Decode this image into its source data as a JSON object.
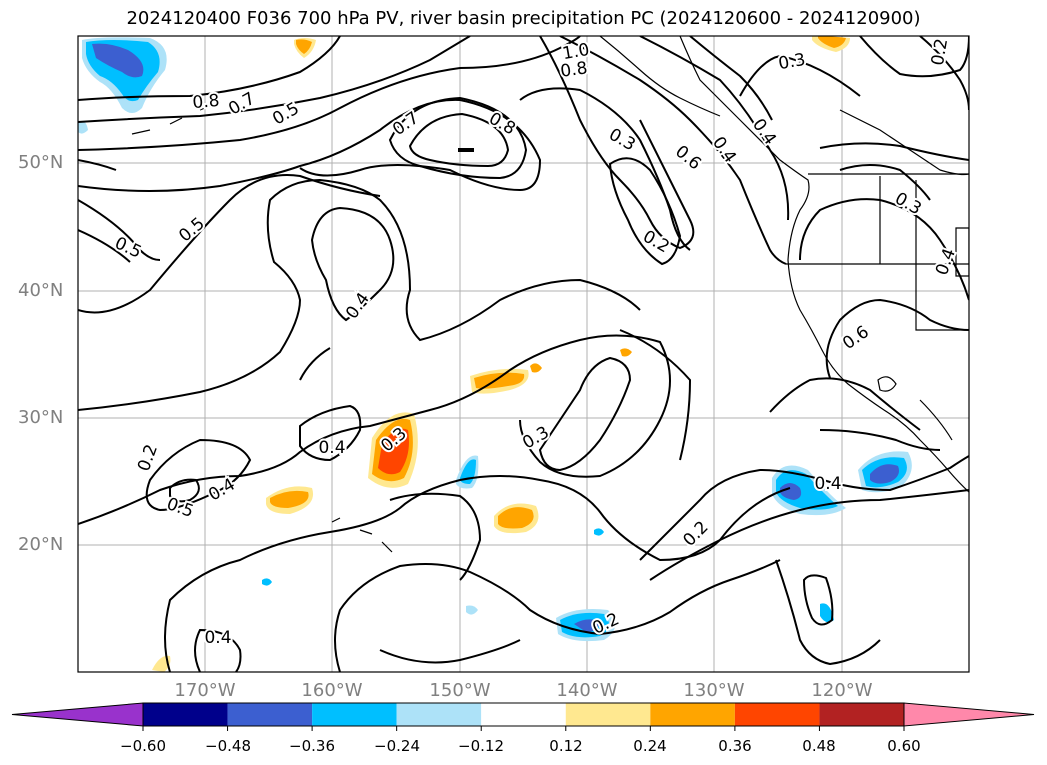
{
  "title": "2024120400 F036 700 hPa PV, river basin precipitation PC (2024120600 - 2024120900)",
  "axes": {
    "latitude_labels": [
      "50°N",
      "40°N",
      "30°N",
      "20°N"
    ],
    "longitude_labels": [
      "170°W",
      "160°W",
      "150°W",
      "140°W",
      "130°W",
      "120°W"
    ]
  },
  "contour_labels": [
    "1.0",
    "0.8",
    "0.8",
    "0.7",
    "0.5",
    "0.8",
    "0.7",
    "0.3",
    "0.6",
    "0.4",
    "0.4",
    "0.3",
    "0.5",
    "0.5",
    "0.4",
    "0.2",
    "0.4",
    "0.6",
    "0.3",
    "0.3",
    "0.3",
    "0.4",
    "0.2",
    "0.5",
    "0.4",
    "0.4",
    "0.2",
    "0.4",
    "0.2",
    "0.2"
  ],
  "colorbar": {
    "ticks": [
      "−0.60",
      "−0.48",
      "−0.36",
      "−0.24",
      "−0.12",
      "0.12",
      "0.24",
      "0.36",
      "0.48",
      "0.60"
    ],
    "colors": [
      "#9932cc",
      "#00008b",
      "#3c5fd0",
      "#00bfff",
      "#ade2f8",
      "#ffffff",
      "#ffe890",
      "#ffa500",
      "#ff4500",
      "#b22222",
      "#ff88aa"
    ]
  },
  "colors": {
    "contour": "#000000",
    "grid": "#b0b0b0",
    "axis_label": "#808080"
  }
}
